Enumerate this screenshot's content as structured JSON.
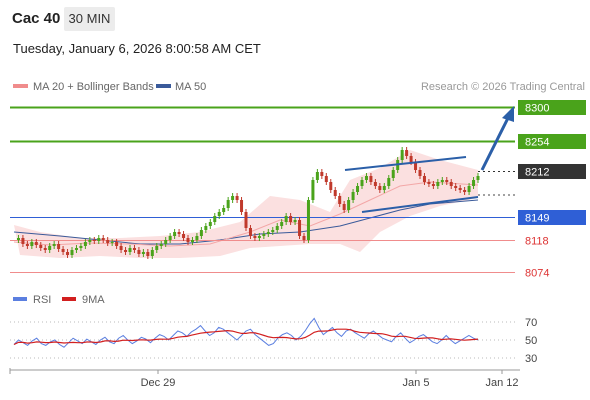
{
  "header": {
    "ticker": "Cac 40",
    "timeframe": "30 MIN",
    "timestamp": "Tuesday, January 6, 2026 8:00:58 AM CET"
  },
  "legend": {
    "ma20": "MA 20 + Bollinger Bands",
    "ma50": "MA 50",
    "credit": "Research © 2026 Trading Central"
  },
  "rsi_legend": {
    "rsi": "RSI",
    "ma9": "9MA"
  },
  "colors": {
    "green_level": "#4aa31b",
    "blue_level": "#2f5fd6",
    "red_level": "#f08c8c",
    "current_price": "#333333",
    "up_candle": "#4aa31b",
    "down_candle": "#c0392b",
    "bollinger_fill": "#fbe0e0",
    "ma50": "#3a5a9a",
    "arrow": "#2b5fa8",
    "rsi_line": "#5b7fe0",
    "rsi_ma": "#d21f1f"
  },
  "chart_data": {
    "type": "candlestick",
    "title": "Cac 40",
    "ylim": [
      8050,
      8320
    ],
    "x_ticks": [
      "Dec 29",
      "Jan 5",
      "Jan 12"
    ],
    "levels": [
      {
        "label": "8300",
        "value": 8300,
        "kind": "resistance"
      },
      {
        "label": "8254",
        "value": 8254,
        "kind": "resistance"
      },
      {
        "label": "8212",
        "value": 8212,
        "kind": "last"
      },
      {
        "label": "8149",
        "value": 8149,
        "kind": "pivot"
      },
      {
        "label": "8118",
        "value": 8118,
        "kind": "support"
      },
      {
        "label": "8074",
        "value": 8074,
        "kind": "support"
      }
    ],
    "rsi": {
      "ticks": [
        70,
        50,
        30
      ],
      "ylim": [
        20,
        80
      ]
    }
  }
}
